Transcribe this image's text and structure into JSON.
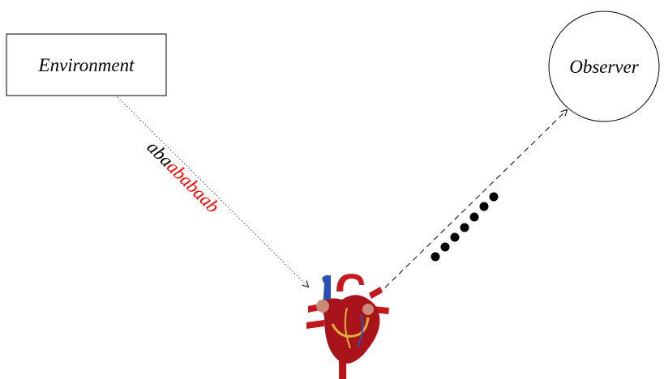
{
  "nodes": [
    {
      "label": "Environment"
    },
    {
      "label": "Observer"
    }
  ],
  "sequence": {
    "prefix": "aba",
    "highlight": "ababaab"
  }
}
